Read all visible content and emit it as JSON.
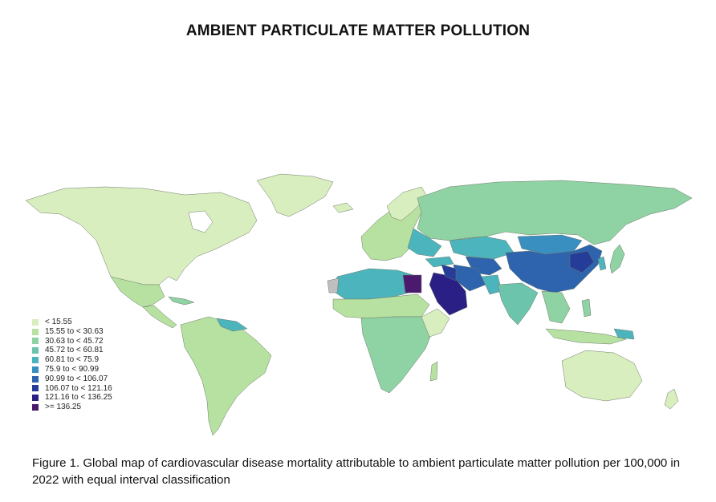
{
  "title": "AMBIENT PARTICULATE MATTER POLLUTION",
  "legend": [
    {
      "label": "< 15.55",
      "color": "#d9eebf"
    },
    {
      "label": "15.55 to < 30.63",
      "color": "#b7e1a1"
    },
    {
      "label": "30.63 to < 45.72",
      "color": "#8fd2a3"
    },
    {
      "label": "45.72 to < 60.81",
      "color": "#6cc4ac"
    },
    {
      "label": "60.81 to < 75.9",
      "color": "#4cb4bd"
    },
    {
      "label": "75.9 to < 90.99",
      "color": "#3a8fc1"
    },
    {
      "label": "90.99 to < 106.07",
      "color": "#2e63ad"
    },
    {
      "label": "106.07 to < 121.16",
      "color": "#253d98"
    },
    {
      "label": "121.16 to < 136.25",
      "color": "#2a1f84"
    },
    {
      "label": ">= 136.25",
      "color": "#4b1a6e"
    }
  ],
  "caption": "Figure 1. Global map of cardiovascular disease mortality attributable to ambient particulate matter pollution per 100,000 in 2022 with equal interval classification"
}
